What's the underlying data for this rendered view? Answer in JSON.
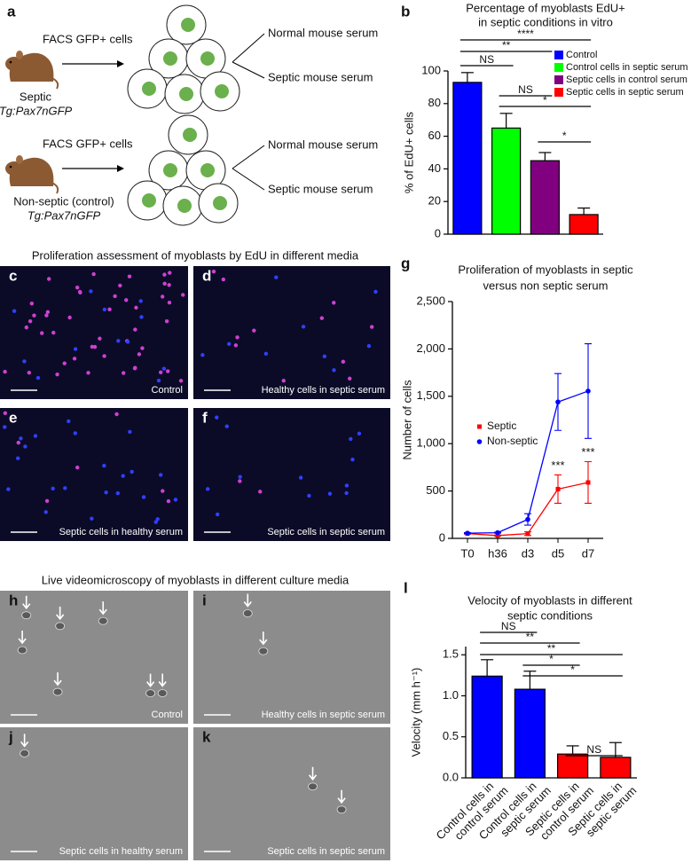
{
  "diagram": {
    "label": "a",
    "rows": [
      {
        "source": "FACS GFP+ cells",
        "mouse": [
          "Septic",
          "Tg:Pax7nGFP"
        ],
        "media": [
          "Normal mouse serum",
          "Septic mouse serum"
        ]
      },
      {
        "source": "FACS GFP+ cells",
        "mouse": [
          "Non-septic (control)",
          "Tg:Pax7nGFP"
        ],
        "media": [
          "Normal mouse serum",
          "Septic mouse serum"
        ]
      }
    ]
  },
  "micrographs": [
    {
      "title": "Proliferation assessment of myoblasts by EdU in different media",
      "images": [
        {
          "label": "c",
          "caption": "Control"
        },
        {
          "label": "d",
          "caption": "Healthy cells in septic serum"
        },
        {
          "label": "e",
          "caption": "Septic cells in healthy serum"
        },
        {
          "label": "f",
          "caption": "Septic cells in septic serum"
        }
      ]
    },
    {
      "title": "Live videomicroscopy of myoblasts in different culture media",
      "images": [
        {
          "label": "h",
          "caption": "Control"
        },
        {
          "label": "i",
          "caption": "Healthy cells in septic serum"
        },
        {
          "label": "j",
          "caption": "Septic cells in healthy serum"
        },
        {
          "label": "k",
          "caption": "Septic cells in septic serum"
        }
      ]
    }
  ],
  "chart_data": [
    {
      "type": "bar",
      "label": "b",
      "title": [
        "Percentage of myoblasts EdU+",
        "in septic conditions in vitro"
      ],
      "ylabel": "% of EdU+ cells",
      "categories": [
        "Control",
        "Control cells in septic serum",
        "Septic cells in control serum",
        "Septic cells in septic serum"
      ],
      "values": [
        93,
        65,
        45,
        12
      ],
      "errors": [
        6,
        9,
        5,
        4
      ],
      "colors": [
        "#0000ff",
        "#00ff00",
        "#800080",
        "#ff0000"
      ],
      "ylim": [
        0,
        100
      ],
      "yticks": [
        0,
        20,
        40,
        60,
        80,
        100
      ],
      "legend": "upper right",
      "significance": [
        {
          "label": "****",
          "from": 0,
          "to": 3
        },
        {
          "label": "**",
          "from": 0,
          "to": 2
        },
        {
          "label": "NS",
          "from": 0,
          "to": 1
        },
        {
          "label": "NS",
          "from": 1,
          "to": 2
        },
        {
          "label": "*",
          "from": 1,
          "to": 3
        },
        {
          "label": "*",
          "from": 2,
          "to": 3
        }
      ]
    },
    {
      "type": "line",
      "label": "g",
      "title": [
        "Proliferation of myoblasts in septic",
        "versus non septic serum"
      ],
      "ylabel": "Number of cells",
      "categories": [
        "T0",
        "h36",
        "d3",
        "d5",
        "d7"
      ],
      "series": [
        {
          "name": "Septic",
          "color": "#ff0000",
          "values": [
            50,
            30,
            50,
            520,
            590
          ],
          "errors": [
            5,
            5,
            20,
            150,
            220
          ]
        },
        {
          "name": "Non-septic",
          "color": "#0000ff",
          "values": [
            55,
            60,
            200,
            1440,
            1555
          ],
          "errors": [
            5,
            5,
            60,
            300,
            500
          ]
        }
      ],
      "ylim": [
        0,
        2500
      ],
      "yticks": [
        0,
        500,
        {
          "value": 1000,
          "label": "1,000"
        },
        {
          "value": 1500,
          "label": "1,500"
        },
        {
          "value": 2000,
          "label": "2,000"
        },
        {
          "value": 2500,
          "label": "2,500"
        }
      ],
      "legend": "center left",
      "annotations": [
        {
          "label": "***",
          "category": 3
        },
        {
          "label": "***",
          "category": 4
        }
      ]
    },
    {
      "type": "bar",
      "label": "l",
      "title": [
        "Velocity of myoblasts in different",
        "septic conditions"
      ],
      "ylabel": "Velocity (mm h⁻¹)",
      "categories": [
        "Control cells in control serum",
        "Control cells in septic serum",
        "Septic cells in control serum",
        "Septic cells in septic serum"
      ],
      "values": [
        1.24,
        1.08,
        0.29,
        0.25
      ],
      "errors": [
        0.2,
        0.22,
        0.1,
        0.18
      ],
      "colors": [
        "#0000ff",
        "#0000ff",
        "#ff0000",
        "#ff0000"
      ],
      "ylim": [
        0,
        1.6
      ],
      "yticks": [
        {
          "value": 0,
          "label": "0.0"
        },
        0.5,
        {
          "value": 1,
          "label": "1.0"
        },
        1.5
      ],
      "significance": [
        {
          "label": "NS",
          "from": 0,
          "to": 1
        },
        {
          "label": "**",
          "from": 0,
          "to": 2
        },
        {
          "label": "**",
          "from": 0,
          "to": 3
        },
        {
          "label": "*",
          "from": 1,
          "to": 2
        },
        {
          "label": "*",
          "from": 1,
          "to": 3
        },
        {
          "label": "NS",
          "from": 2,
          "to": 3
        }
      ]
    }
  ]
}
